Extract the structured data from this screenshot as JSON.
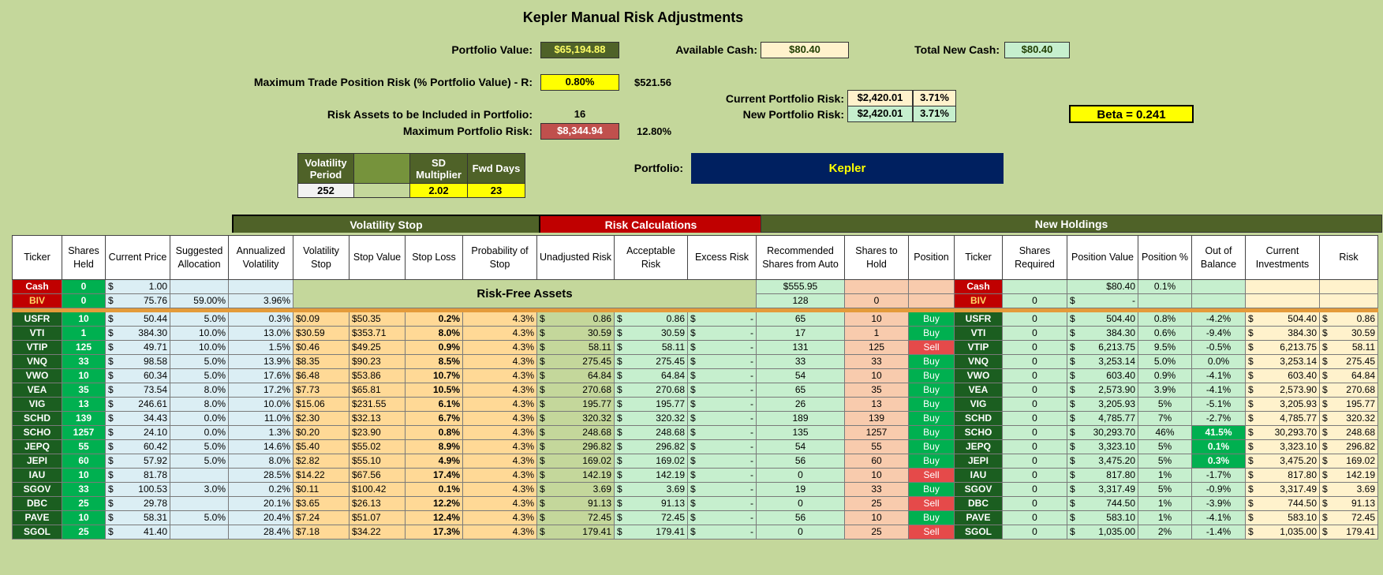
{
  "title": "Kepler Manual Risk Adjustments",
  "portfolio_value": {
    "label": "Portfolio Value:",
    "value": "$65,194.88"
  },
  "available_cash": {
    "label": "Available Cash:",
    "value": "$80.40"
  },
  "total_new_cash": {
    "label": "Total New Cash:",
    "value": "$80.40"
  },
  "max_trade_risk": {
    "label": "Maximum Trade Position Risk (% Portfolio Value) - R:",
    "value": "0.80%",
    "amount": "$521.56"
  },
  "risk_assets": {
    "label": "Risk Assets to be Included in Portfolio:",
    "value": "16"
  },
  "max_portfolio_risk": {
    "label": "Maximum Portfolio Risk:",
    "value": "$8,344.94",
    "pct": "12.80%"
  },
  "current_portfolio_risk": {
    "label": "Current Portfolio Risk:",
    "value": "$2,420.01",
    "pct": "3.71%"
  },
  "new_portfolio_risk": {
    "label": "New Portfolio Risk:",
    "value": "$2,420.01",
    "pct": "3.71%"
  },
  "beta": "Beta =  0.241",
  "params": {
    "vol_period_label": "Volatility Period",
    "vol_period": "252",
    "sd_label": "SD Multiplier",
    "sd": "2.02",
    "fwd_label": "Fwd Days",
    "fwd": "23"
  },
  "portfolio": {
    "label": "Portfolio:",
    "value": "Kepler"
  },
  "sections": {
    "volatility_stop": "Volatility Stop",
    "risk_calculations": "Risk Calculations",
    "new_holdings": "New Holdings",
    "risk_free": "Risk-Free Assets"
  },
  "columns": [
    "Ticker",
    "Shares Held",
    "Current Price",
    "Suggested Allocation",
    "Annualized Volatility",
    "Volatility Stop",
    "Stop Value",
    "Stop Loss",
    "Probability of Stop",
    "Unadjusted Risk",
    "Acceptable Risk",
    "Excess Risk",
    "Recommended Shares from Auto",
    "Shares to Hold",
    "Position",
    "Ticker",
    "Shares Required",
    "Position Value",
    "Position %",
    "Out of Balance",
    "Current Investments",
    "Risk"
  ],
  "cash_row": {
    "ticker": "Cash",
    "shares": "0",
    "price": "1.00",
    "rec": "$555.95",
    "ticker2": "Cash",
    "posval": "$80.40",
    "pospct": "0.1%"
  },
  "biv_row": {
    "ticker": "BIV",
    "shares": "0",
    "price": "75.76",
    "alloc": "59.00%",
    "vol": "3.96%",
    "rec": "128",
    "hold": "0",
    "ticker2": "BIV",
    "req": "0",
    "posval": "-"
  },
  "rows": [
    {
      "t": "USFR",
      "sh": "10",
      "p": "50.44",
      "al": "5.0%",
      "v": "0.3%",
      "vs": "$0.09",
      "sv": "$50.35",
      "sl": "0.2%",
      "ps": "4.3%",
      "ur": "0.86",
      "ar": "0.86",
      "er": "-",
      "rec": "65",
      "hold": "10",
      "pos": "Buy",
      "req": "0",
      "pv": "504.40",
      "pp": "0.8%",
      "ob": "-4.2%",
      "ci": "504.40",
      "rk": "0.86"
    },
    {
      "t": "VTI",
      "sh": "1",
      "p": "384.30",
      "al": "10.0%",
      "v": "13.0%",
      "vs": "$30.59",
      "sv": "$353.71",
      "sl": "8.0%",
      "ps": "4.3%",
      "ur": "30.59",
      "ar": "30.59",
      "er": "-",
      "rec": "17",
      "hold": "1",
      "pos": "Buy",
      "req": "0",
      "pv": "384.30",
      "pp": "0.6%",
      "ob": "-9.4%",
      "ci": "384.30",
      "rk": "30.59"
    },
    {
      "t": "VTIP",
      "sh": "125",
      "p": "49.71",
      "al": "10.0%",
      "v": "1.5%",
      "vs": "$0.46",
      "sv": "$49.25",
      "sl": "0.9%",
      "ps": "4.3%",
      "ur": "58.11",
      "ar": "58.11",
      "er": "-",
      "rec": "131",
      "hold": "125",
      "pos": "Sell",
      "req": "0",
      "pv": "6,213.75",
      "pp": "9.5%",
      "ob": "-0.5%",
      "ci": "6,213.75",
      "rk": "58.11"
    },
    {
      "t": "VNQ",
      "sh": "33",
      "p": "98.58",
      "al": "5.0%",
      "v": "13.9%",
      "vs": "$8.35",
      "sv": "$90.23",
      "sl": "8.5%",
      "ps": "4.3%",
      "ur": "275.45",
      "ar": "275.45",
      "er": "-",
      "rec": "33",
      "hold": "33",
      "pos": "Buy",
      "req": "0",
      "pv": "3,253.14",
      "pp": "5.0%",
      "ob": "0.0%",
      "ci": "3,253.14",
      "rk": "275.45"
    },
    {
      "t": "VWO",
      "sh": "10",
      "p": "60.34",
      "al": "5.0%",
      "v": "17.6%",
      "vs": "$6.48",
      "sv": "$53.86",
      "sl": "10.7%",
      "ps": "4.3%",
      "ur": "64.84",
      "ar": "64.84",
      "er": "-",
      "rec": "54",
      "hold": "10",
      "pos": "Buy",
      "req": "0",
      "pv": "603.40",
      "pp": "0.9%",
      "ob": "-4.1%",
      "ci": "603.40",
      "rk": "64.84"
    },
    {
      "t": "VEA",
      "sh": "35",
      "p": "73.54",
      "al": "8.0%",
      "v": "17.2%",
      "vs": "$7.73",
      "sv": "$65.81",
      "sl": "10.5%",
      "ps": "4.3%",
      "ur": "270.68",
      "ar": "270.68",
      "er": "-",
      "rec": "65",
      "hold": "35",
      "pos": "Buy",
      "req": "0",
      "pv": "2,573.90",
      "pp": "3.9%",
      "ob": "-4.1%",
      "ci": "2,573.90",
      "rk": "270.68"
    },
    {
      "t": "VIG",
      "sh": "13",
      "p": "246.61",
      "al": "8.0%",
      "v": "10.0%",
      "vs": "$15.06",
      "sv": "$231.55",
      "sl": "6.1%",
      "ps": "4.3%",
      "ur": "195.77",
      "ar": "195.77",
      "er": "-",
      "rec": "26",
      "hold": "13",
      "pos": "Buy",
      "req": "0",
      "pv": "3,205.93",
      "pp": "5%",
      "ob": "-5.1%",
      "ci": "3,205.93",
      "rk": "195.77"
    },
    {
      "t": "SCHD",
      "sh": "139",
      "p": "34.43",
      "al": "0.0%",
      "v": "11.0%",
      "vs": "$2.30",
      "sv": "$32.13",
      "sl": "6.7%",
      "ps": "4.3%",
      "ur": "320.32",
      "ar": "320.32",
      "er": "-",
      "rec": "189",
      "hold": "139",
      "pos": "Buy",
      "req": "0",
      "pv": "4,785.77",
      "pp": "7%",
      "ob": "-2.7%",
      "ci": "4,785.77",
      "rk": "320.32"
    },
    {
      "t": "SCHO",
      "sh": "1257",
      "p": "24.10",
      "al": "0.0%",
      "v": "1.3%",
      "vs": "$0.20",
      "sv": "$23.90",
      "sl": "0.8%",
      "ps": "4.3%",
      "ur": "248.68",
      "ar": "248.68",
      "er": "-",
      "rec": "135",
      "hold": "1257",
      "pos": "Buy",
      "req": "0",
      "pv": "30,293.70",
      "pp": "46%",
      "ob": "41.5%",
      "obg": true,
      "ci": "30,293.70",
      "rk": "248.68"
    },
    {
      "t": "JEPQ",
      "sh": "55",
      "p": "60.42",
      "al": "5.0%",
      "v": "14.6%",
      "vs": "$5.40",
      "sv": "$55.02",
      "sl": "8.9%",
      "ps": "4.3%",
      "ur": "296.82",
      "ar": "296.82",
      "er": "-",
      "rec": "54",
      "hold": "55",
      "pos": "Buy",
      "req": "0",
      "pv": "3,323.10",
      "pp": "5%",
      "ob": "0.1%",
      "obg": true,
      "ci": "3,323.10",
      "rk": "296.82"
    },
    {
      "t": "JEPI",
      "sh": "60",
      "p": "57.92",
      "al": "5.0%",
      "v": "8.0%",
      "vs": "$2.82",
      "sv": "$55.10",
      "sl": "4.9%",
      "ps": "4.3%",
      "ur": "169.02",
      "ar": "169.02",
      "er": "-",
      "rec": "56",
      "hold": "60",
      "pos": "Buy",
      "req": "0",
      "pv": "3,475.20",
      "pp": "5%",
      "ob": "0.3%",
      "obg": true,
      "ci": "3,475.20",
      "rk": "169.02"
    },
    {
      "t": "IAU",
      "sh": "10",
      "p": "81.78",
      "al": "",
      "v": "28.5%",
      "vs": "$14.22",
      "sv": "$67.56",
      "sl": "17.4%",
      "ps": "4.3%",
      "ur": "142.19",
      "ar": "142.19",
      "er": "-",
      "rec": "0",
      "hold": "10",
      "pos": "Sell",
      "req": "0",
      "pv": "817.80",
      "pp": "1%",
      "ob": "-1.7%",
      "ci": "817.80",
      "rk": "142.19"
    },
    {
      "t": "SGOV",
      "sh": "33",
      "p": "100.53",
      "al": "3.0%",
      "v": "0.2%",
      "vs": "$0.11",
      "sv": "$100.42",
      "sl": "0.1%",
      "ps": "4.3%",
      "ur": "3.69",
      "ar": "3.69",
      "er": "-",
      "rec": "19",
      "hold": "33",
      "pos": "Buy",
      "req": "0",
      "pv": "3,317.49",
      "pp": "5%",
      "ob": "-0.9%",
      "ci": "3,317.49",
      "rk": "3.69"
    },
    {
      "t": "DBC",
      "sh": "25",
      "p": "29.78",
      "al": "",
      "v": "20.1%",
      "vs": "$3.65",
      "sv": "$26.13",
      "sl": "12.2%",
      "ps": "4.3%",
      "ur": "91.13",
      "ar": "91.13",
      "er": "-",
      "rec": "0",
      "hold": "25",
      "pos": "Sell",
      "req": "0",
      "pv": "744.50",
      "pp": "1%",
      "ob": "-3.9%",
      "ci": "744.50",
      "rk": "91.13"
    },
    {
      "t": "PAVE",
      "sh": "10",
      "p": "58.31",
      "al": "5.0%",
      "v": "20.4%",
      "vs": "$7.24",
      "sv": "$51.07",
      "sl": "12.4%",
      "ps": "4.3%",
      "ur": "72.45",
      "ar": "72.45",
      "er": "-",
      "rec": "56",
      "hold": "10",
      "pos": "Buy",
      "req": "0",
      "pv": "583.10",
      "pp": "1%",
      "ob": "-4.1%",
      "ci": "583.10",
      "rk": "72.45"
    },
    {
      "t": "SGOL",
      "sh": "25",
      "p": "41.40",
      "al": "",
      "v": "28.4%",
      "vs": "$7.18",
      "sv": "$34.22",
      "sl": "17.3%",
      "ps": "4.3%",
      "ur": "179.41",
      "ar": "179.41",
      "er": "-",
      "rec": "0",
      "hold": "25",
      "pos": "Sell",
      "req": "0",
      "pv": "1,035.00",
      "pp": "2%",
      "ob": "-1.4%",
      "ci": "1,035.00",
      "rk": "179.41"
    }
  ]
}
